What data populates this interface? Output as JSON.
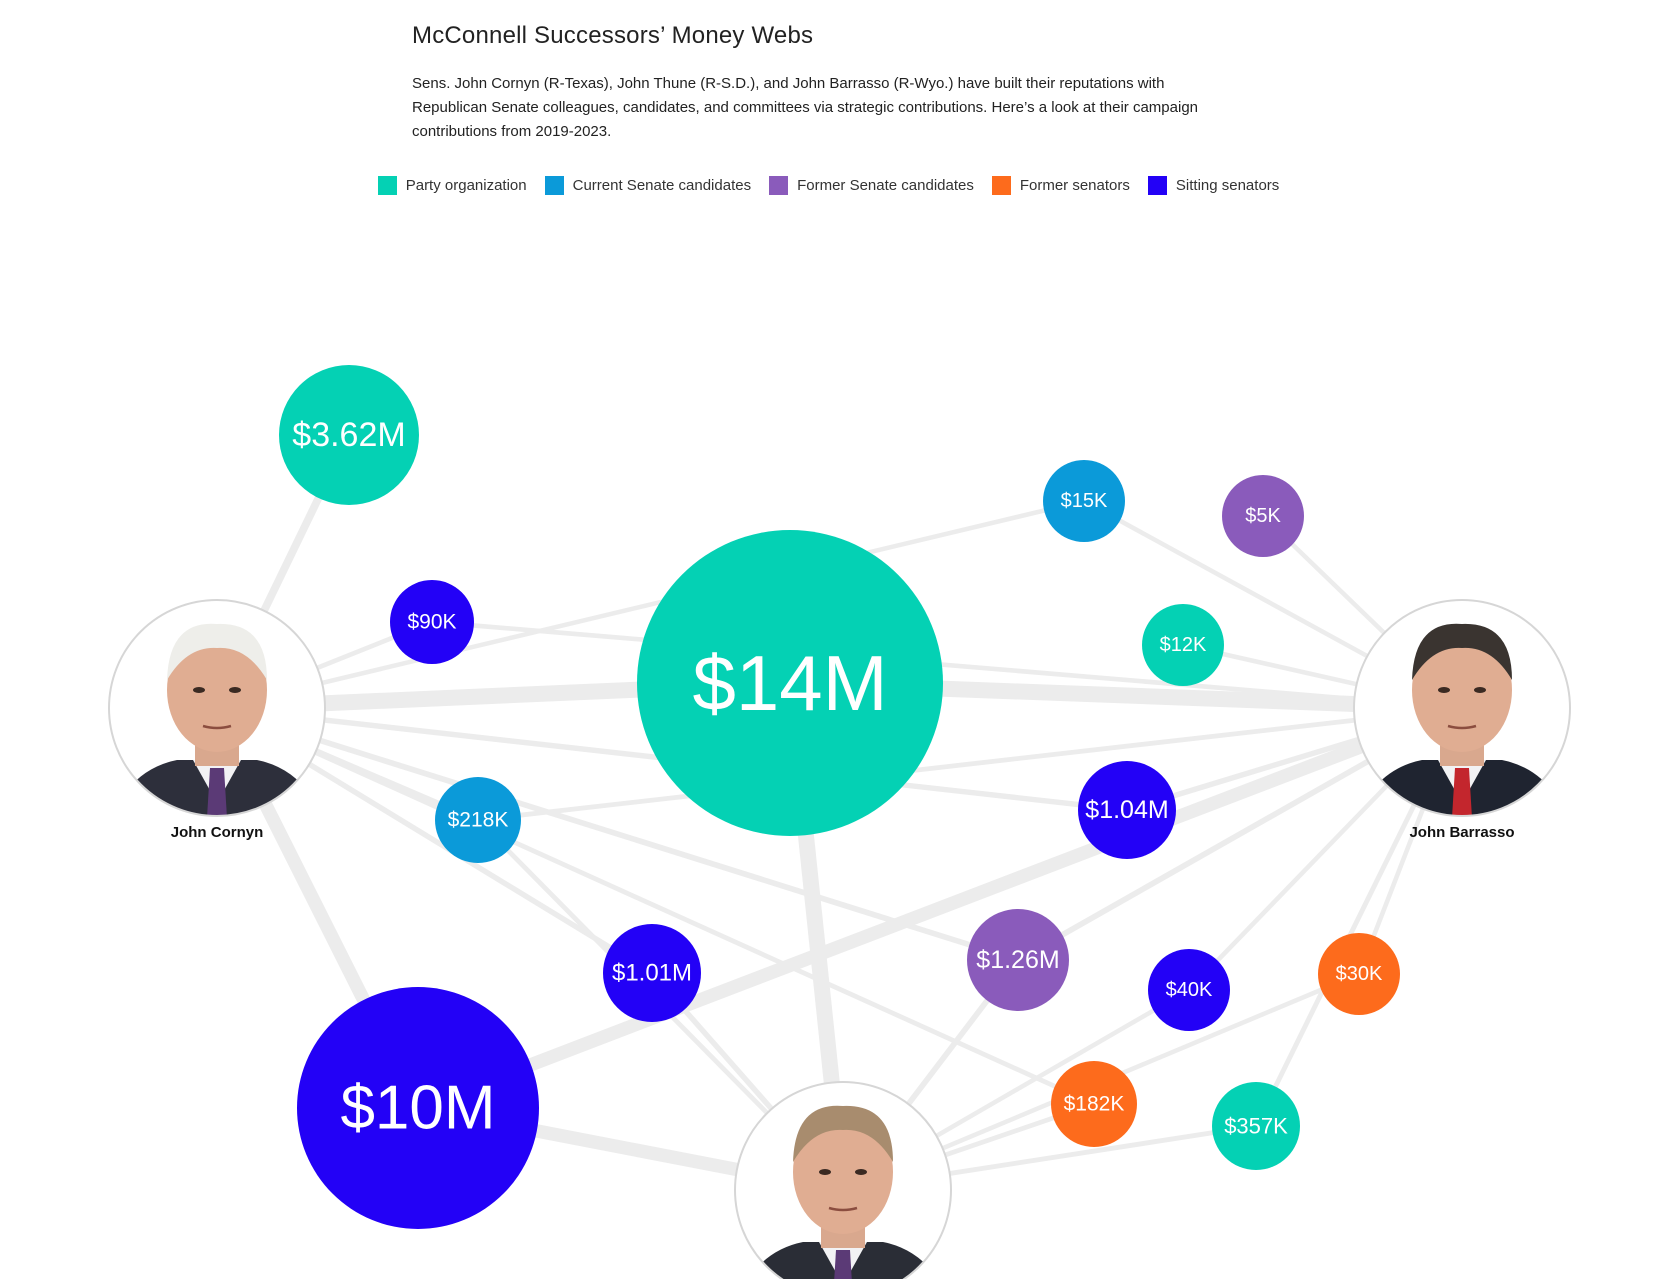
{
  "header": {
    "title": "McConnell Successors’ Money Webs",
    "description": "Sens. John Cornyn (R-Texas), John Thune (R-S.D.), and John Barrasso (R-Wyo.) have built their reputations with Republican Senate colleagues, candidates, and committees via strategic contributions. Here’s a look at their campaign contributions from 2019-2023."
  },
  "legend": [
    {
      "label": "Party organization",
      "color": "#04d1b4"
    },
    {
      "label": "Current Senate candidates",
      "color": "#0b9ad9"
    },
    {
      "label": "Former Senate candidates",
      "color": "#8a5bbb"
    },
    {
      "label": "Former senators",
      "color": "#fd6b1c"
    },
    {
      "label": "Sitting senators",
      "color": "#2301f6"
    }
  ],
  "people": [
    {
      "id": "cornyn",
      "name": "John Cornyn"
    },
    {
      "id": "barrasso",
      "name": "John Barrasso"
    },
    {
      "id": "thune",
      "name": "John Thune"
    }
  ],
  "contributions": [
    {
      "id": "c1",
      "label": "$3.62M",
      "category": "Party organization",
      "donors": [
        "cornyn"
      ]
    },
    {
      "id": "c2",
      "label": "$14M",
      "category": "Party organization",
      "donors": [
        "cornyn",
        "barrasso",
        "thune"
      ]
    },
    {
      "id": "c3",
      "label": "$10M",
      "category": "Sitting senators",
      "donors": [
        "cornyn",
        "barrasso",
        "thune"
      ]
    },
    {
      "id": "c4",
      "label": "$90K",
      "category": "Sitting senators",
      "donors": [
        "cornyn",
        "barrasso"
      ]
    },
    {
      "id": "c5",
      "label": "$218K",
      "category": "Current Senate candidates",
      "donors": [
        "cornyn",
        "barrasso",
        "thune"
      ]
    },
    {
      "id": "c6",
      "label": "$1.01M",
      "category": "Sitting senators",
      "donors": [
        "cornyn",
        "thune"
      ]
    },
    {
      "id": "c7",
      "label": "$1.26M",
      "category": "Former Senate candidates",
      "donors": [
        "cornyn",
        "barrasso",
        "thune"
      ]
    },
    {
      "id": "c8",
      "label": "$15K",
      "category": "Current Senate candidates",
      "donors": [
        "barrasso",
        "cornyn"
      ]
    },
    {
      "id": "c9",
      "label": "$5K",
      "category": "Former Senate candidates",
      "donors": [
        "barrasso"
      ]
    },
    {
      "id": "c10",
      "label": "$12K",
      "category": "Party organization",
      "donors": [
        "barrasso"
      ]
    },
    {
      "id": "c11",
      "label": "$1.04M",
      "category": "Sitting senators",
      "donors": [
        "barrasso",
        "cornyn"
      ]
    },
    {
      "id": "c12",
      "label": "$40K",
      "category": "Sitting senators",
      "donors": [
        "barrasso",
        "thune"
      ]
    },
    {
      "id": "c13",
      "label": "$30K",
      "category": "Former senators",
      "donors": [
        "barrasso",
        "thune"
      ]
    },
    {
      "id": "c14",
      "label": "$182K",
      "category": "Former senators",
      "donors": [
        "thune",
        "cornyn"
      ]
    },
    {
      "id": "c15",
      "label": "$357K",
      "category": "Party organization",
      "donors": [
        "thune",
        "barrasso"
      ]
    }
  ]
}
